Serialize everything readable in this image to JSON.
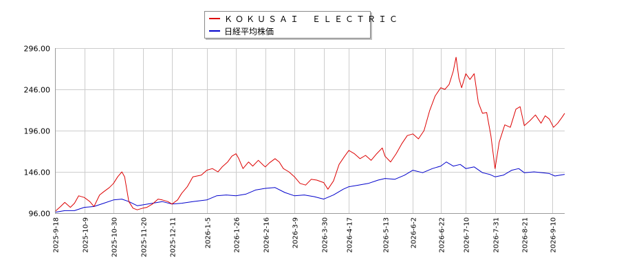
{
  "chart_data": {
    "type": "line",
    "legend_position": "top-center",
    "grid": true,
    "ylim": [
      96,
      296
    ],
    "y_ticks": [
      "96.00",
      "146.00",
      "196.00",
      "246.00",
      "296.00"
    ],
    "y_tick_values": [
      96,
      146,
      196,
      246,
      296
    ],
    "x_range": [
      "2025-9-18",
      "2026-9-19"
    ],
    "x_ticks": [
      "2025-9-18",
      "2025-10-9",
      "2025-10-30",
      "2025-11-20",
      "2025-12-11",
      "2026-1-5",
      "2026-1-26",
      "2026-2-16",
      "2026-3-9",
      "2026-3-30",
      "2026-4-17",
      "2026-5-13",
      "2026-6-2",
      "2026-6-22",
      "2026-7-10",
      "2026-7-31",
      "2026-8-21",
      "2026-9-10"
    ],
    "series": [
      {
        "name": "ＫＯＫＵＳＡＩ　ＥＬＥＣＴＲＩＣ",
        "color": "#dd0000",
        "points": [
          [
            "2025-9-18",
            98
          ],
          [
            "2025-9-22",
            104
          ],
          [
            "2025-9-25",
            109
          ],
          [
            "2025-9-29",
            103
          ],
          [
            "2025-10-2",
            108
          ],
          [
            "2025-10-5",
            117
          ],
          [
            "2025-10-9",
            115
          ],
          [
            "2025-10-13",
            110
          ],
          [
            "2025-10-16",
            104
          ],
          [
            "2025-10-20",
            118
          ],
          [
            "2025-10-23",
            122
          ],
          [
            "2025-10-27",
            127
          ],
          [
            "2025-10-30",
            132
          ],
          [
            "2025-11-2",
            140
          ],
          [
            "2025-11-5",
            146
          ],
          [
            "2025-11-7",
            140
          ],
          [
            "2025-11-10",
            110
          ],
          [
            "2025-11-13",
            102
          ],
          [
            "2025-11-16",
            100
          ],
          [
            "2025-11-20",
            102
          ],
          [
            "2025-11-23",
            103
          ],
          [
            "2025-11-27",
            107
          ],
          [
            "2025-12-1",
            113
          ],
          [
            "2025-12-4",
            112
          ],
          [
            "2025-12-8",
            110
          ],
          [
            "2025-12-11",
            107
          ],
          [
            "2025-12-15",
            112
          ],
          [
            "2025-12-18",
            120
          ],
          [
            "2025-12-22",
            128
          ],
          [
            "2025-12-26",
            140
          ],
          [
            "2026-1-1",
            142
          ],
          [
            "2026-1-5",
            148
          ],
          [
            "2026-1-9",
            150
          ],
          [
            "2026-1-13",
            146
          ],
          [
            "2026-1-16",
            152
          ],
          [
            "2026-1-20",
            158
          ],
          [
            "2026-1-23",
            165
          ],
          [
            "2026-1-26",
            168
          ],
          [
            "2026-1-28",
            162
          ],
          [
            "2026-1-31",
            150
          ],
          [
            "2026-2-4",
            158
          ],
          [
            "2026-2-7",
            153
          ],
          [
            "2026-2-11",
            160
          ],
          [
            "2026-2-14",
            155
          ],
          [
            "2026-2-16",
            152
          ],
          [
            "2026-2-19",
            157
          ],
          [
            "2026-2-23",
            162
          ],
          [
            "2026-2-26",
            158
          ],
          [
            "2026-3-1",
            150
          ],
          [
            "2026-3-5",
            146
          ],
          [
            "2026-3-9",
            140
          ],
          [
            "2026-3-13",
            132
          ],
          [
            "2026-3-17",
            130
          ],
          [
            "2026-3-21",
            137
          ],
          [
            "2026-3-25",
            136
          ],
          [
            "2026-3-30",
            133
          ],
          [
            "2026-4-2",
            125
          ],
          [
            "2026-4-6",
            135
          ],
          [
            "2026-4-10",
            155
          ],
          [
            "2026-4-14",
            165
          ],
          [
            "2026-4-17",
            172
          ],
          [
            "2026-4-21",
            168
          ],
          [
            "2026-4-25",
            162
          ],
          [
            "2026-4-29",
            166
          ],
          [
            "2026-5-3",
            160
          ],
          [
            "2026-5-7",
            168
          ],
          [
            "2026-5-11",
            175
          ],
          [
            "2026-5-13",
            165
          ],
          [
            "2026-5-17",
            158
          ],
          [
            "2026-5-21",
            168
          ],
          [
            "2026-5-25",
            180
          ],
          [
            "2026-5-29",
            190
          ],
          [
            "2026-6-2",
            192
          ],
          [
            "2026-6-6",
            186
          ],
          [
            "2026-6-10",
            196
          ],
          [
            "2026-6-14",
            220
          ],
          [
            "2026-6-18",
            238
          ],
          [
            "2026-6-22",
            248
          ],
          [
            "2026-6-25",
            246
          ],
          [
            "2026-6-28",
            252
          ],
          [
            "2026-7-1",
            268
          ],
          [
            "2026-7-3",
            285
          ],
          [
            "2026-7-5",
            260
          ],
          [
            "2026-7-7",
            248
          ],
          [
            "2026-7-10",
            265
          ],
          [
            "2026-7-13",
            258
          ],
          [
            "2026-7-16",
            265
          ],
          [
            "2026-7-19",
            230
          ],
          [
            "2026-7-22",
            217
          ],
          [
            "2026-7-25",
            218
          ],
          [
            "2026-7-28",
            190
          ],
          [
            "2026-7-31",
            150
          ],
          [
            "2026-8-3",
            182
          ],
          [
            "2026-8-7",
            203
          ],
          [
            "2026-8-11",
            200
          ],
          [
            "2026-8-15",
            222
          ],
          [
            "2026-8-18",
            225
          ],
          [
            "2026-8-21",
            202
          ],
          [
            "2026-8-25",
            208
          ],
          [
            "2026-8-29",
            215
          ],
          [
            "2026-9-2",
            205
          ],
          [
            "2026-9-5",
            214
          ],
          [
            "2026-9-8",
            210
          ],
          [
            "2026-9-11",
            200
          ],
          [
            "2026-9-14",
            205
          ],
          [
            "2026-9-17",
            212
          ],
          [
            "2026-9-19",
            217
          ]
        ]
      },
      {
        "name": "日経平均株価",
        "color": "#0000cc",
        "points": [
          [
            "2025-9-18",
            97
          ],
          [
            "2025-9-25",
            99
          ],
          [
            "2025-10-2",
            99
          ],
          [
            "2025-10-9",
            103
          ],
          [
            "2025-10-16",
            104
          ],
          [
            "2025-10-23",
            108
          ],
          [
            "2025-10-30",
            112
          ],
          [
            "2025-11-5",
            113
          ],
          [
            "2025-11-10",
            110
          ],
          [
            "2025-11-16",
            105
          ],
          [
            "2025-11-20",
            106
          ],
          [
            "2025-11-27",
            108
          ],
          [
            "2025-12-4",
            110
          ],
          [
            "2025-12-11",
            107
          ],
          [
            "2025-12-18",
            108
          ],
          [
            "2025-12-26",
            110
          ],
          [
            "2026-1-5",
            112
          ],
          [
            "2026-1-12",
            117
          ],
          [
            "2026-1-19",
            118
          ],
          [
            "2026-1-26",
            117
          ],
          [
            "2026-2-2",
            119
          ],
          [
            "2026-2-9",
            124
          ],
          [
            "2026-2-16",
            126
          ],
          [
            "2026-2-23",
            127
          ],
          [
            "2026-3-2",
            121
          ],
          [
            "2026-3-9",
            117
          ],
          [
            "2026-3-16",
            118
          ],
          [
            "2026-3-23",
            116
          ],
          [
            "2026-3-30",
            113
          ],
          [
            "2026-4-6",
            118
          ],
          [
            "2026-4-13",
            125
          ],
          [
            "2026-4-17",
            128
          ],
          [
            "2026-4-24",
            130
          ],
          [
            "2026-5-1",
            132
          ],
          [
            "2026-5-8",
            136
          ],
          [
            "2026-5-13",
            138
          ],
          [
            "2026-5-20",
            137
          ],
          [
            "2026-5-27",
            142
          ],
          [
            "2026-6-2",
            148
          ],
          [
            "2026-6-9",
            145
          ],
          [
            "2026-6-16",
            150
          ],
          [
            "2026-6-22",
            153
          ],
          [
            "2026-6-26",
            158
          ],
          [
            "2026-7-1",
            153
          ],
          [
            "2026-7-6",
            155
          ],
          [
            "2026-7-10",
            150
          ],
          [
            "2026-7-16",
            152
          ],
          [
            "2026-7-22",
            145
          ],
          [
            "2026-7-27",
            143
          ],
          [
            "2026-7-31",
            140
          ],
          [
            "2026-8-6",
            142
          ],
          [
            "2026-8-12",
            148
          ],
          [
            "2026-8-17",
            150
          ],
          [
            "2026-8-21",
            145
          ],
          [
            "2026-8-28",
            146
          ],
          [
            "2026-9-3",
            145
          ],
          [
            "2026-9-8",
            144
          ],
          [
            "2026-9-12",
            141
          ],
          [
            "2026-9-19",
            143
          ]
        ]
      }
    ]
  }
}
